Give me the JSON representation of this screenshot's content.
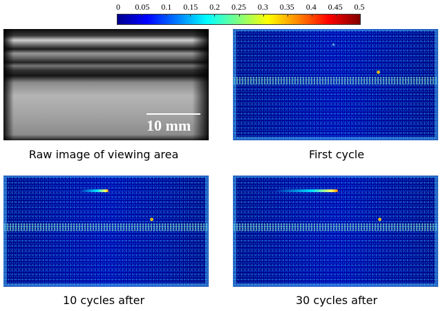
{
  "colorbar": {
    "ticks": [
      "0",
      "0.05",
      "0.1",
      "0.15",
      "0.2",
      "0.25",
      "0.3",
      "0.35",
      "0.4",
      "0.45",
      "0.5"
    ],
    "min": 0,
    "max": 0.5,
    "colormap": "jet"
  },
  "panels": [
    {
      "caption": "Raw image of viewing area",
      "scale_label": "10 mm"
    },
    {
      "caption": "First cycle"
    },
    {
      "caption": "10 cycles after"
    },
    {
      "caption": "30 cycles after"
    }
  ]
}
